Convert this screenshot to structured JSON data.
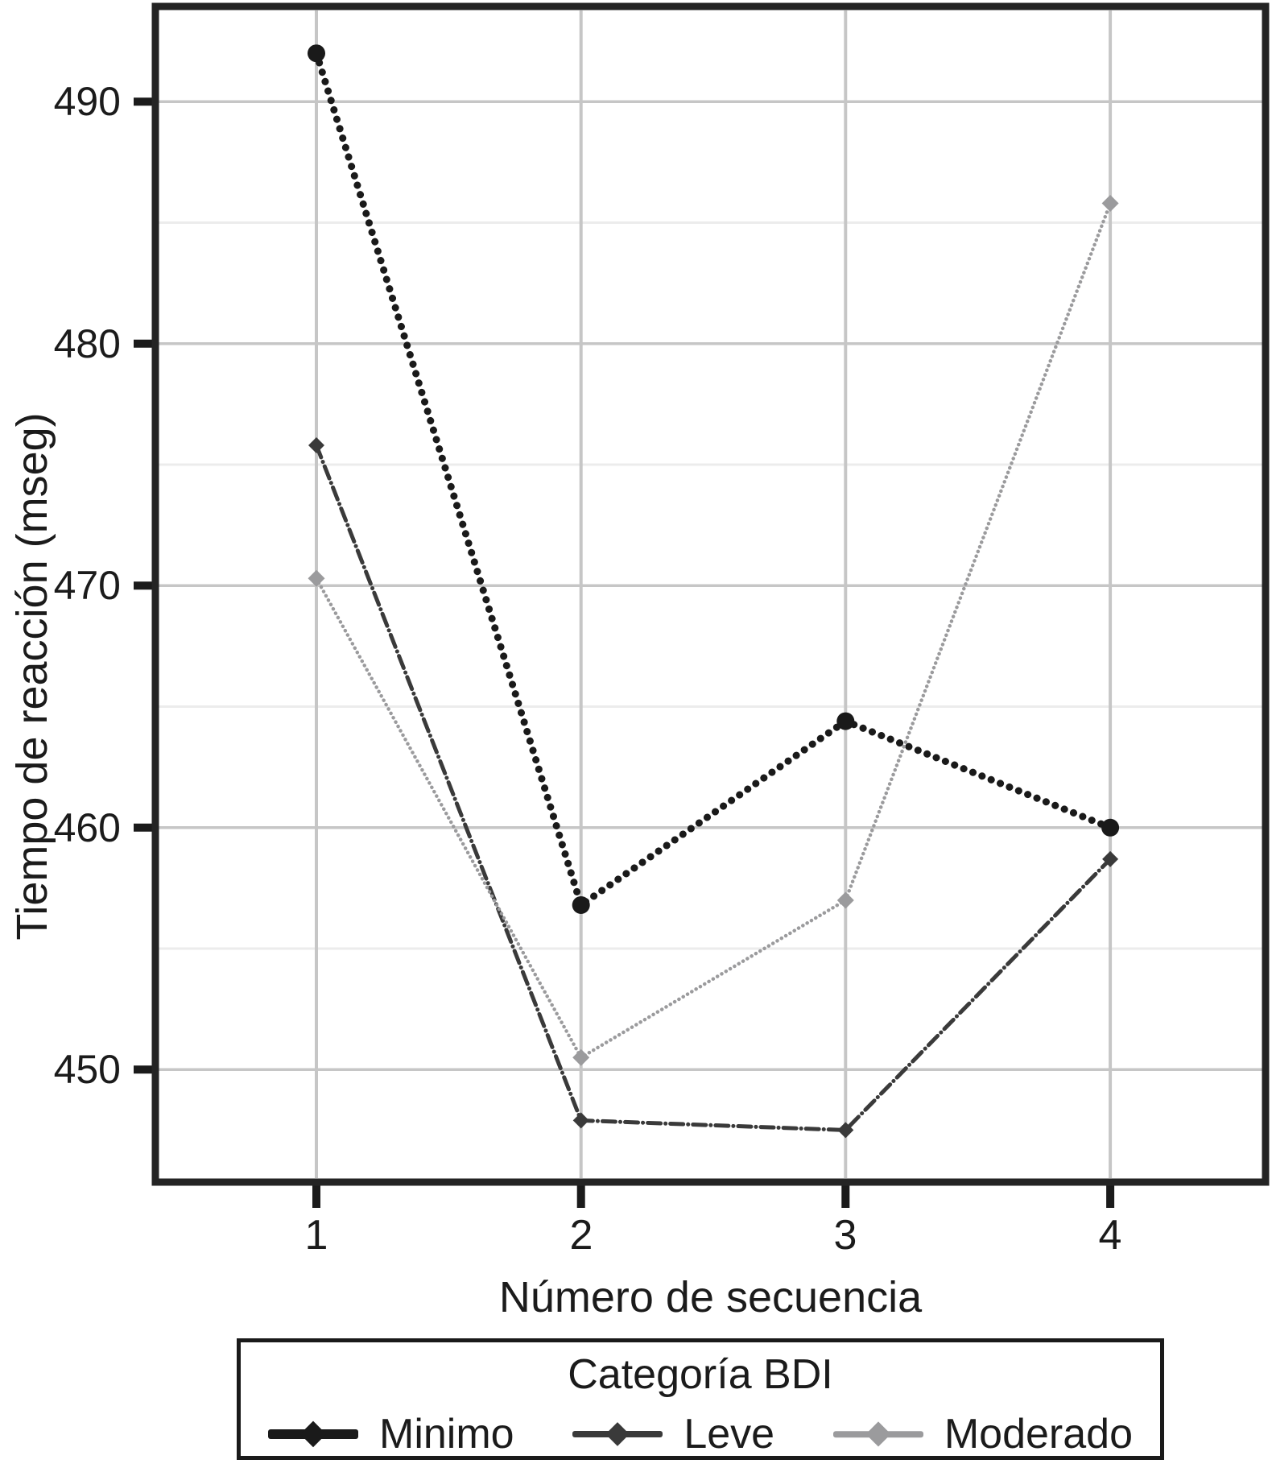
{
  "chart_data": {
    "type": "line",
    "x": [
      1,
      2,
      3,
      4
    ],
    "xlabel": "Número de secuencia",
    "ylabel": "Tiempo de reacción (mseg)",
    "ylim": [
      445,
      494
    ],
    "y_major_ticks": [
      450,
      460,
      470,
      480,
      490
    ],
    "y_minor_gridlines": [
      455,
      465,
      475,
      485
    ],
    "grid": true,
    "legend_title": "Categoría BDI",
    "legend_position": "bottom",
    "series": [
      {
        "name": "Minimo",
        "values": [
          492.0,
          456.8,
          464.4,
          460.0
        ],
        "color": "#1a1a1a",
        "line_width": 9,
        "line_style": "dotted",
        "marker": "circle",
        "marker_size": 11
      },
      {
        "name": "Leve",
        "values": [
          475.8,
          447.9,
          447.5,
          458.7
        ],
        "color": "#3a3a3a",
        "line_width": 5,
        "line_style": "dash-dot",
        "marker": "diamond",
        "marker_size": 10
      },
      {
        "name": "Moderado",
        "values": [
          470.3,
          450.5,
          457.0,
          485.8
        ],
        "color": "#9b9b9d",
        "line_width": 4.5,
        "line_style": "dotted",
        "marker": "diamond",
        "marker_size": 10.5
      }
    ],
    "colors": {
      "plot_border": "#242424",
      "major_gridline": "#c6c6c6",
      "minor_gridline": "#ececec",
      "tick_mark": "#1b1b1b"
    }
  }
}
